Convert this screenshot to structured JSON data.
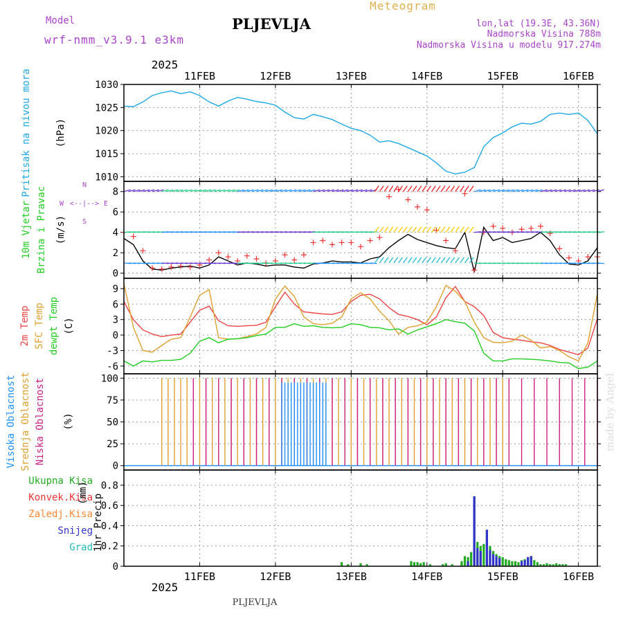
{
  "header": {
    "model_label": "Model",
    "model_name": "wrf-nmm_v3.9.1 e3km",
    "station_title": "PLJEVLJA",
    "meteogram_label": "Meteogram",
    "location": "lon,lat (19.3E, 43.36N)",
    "altitude": "Nadmorska Visina 788m",
    "model_altitude": "Nadmorska Visina u modelu 917.274m",
    "footer_station": "PLJEVLJA",
    "watermark": "made by Angel",
    "year_top": "2025",
    "year_bottom": "2025"
  },
  "colors": {
    "pressure": "#1ea8e8",
    "temp2m": "#ee4444",
    "sfc": "#e0a030",
    "dew": "#22cc22",
    "high_cloud": "#1e90ff",
    "mid_cloud": "#e0a030",
    "low_cloud": "#cc2288",
    "total_precip": "#22aa22",
    "conv_precip": "#ee3333",
    "frozen": "#ff8833",
    "snow": "#3333cc",
    "graupel": "#22bbbb",
    "wind_gust": "#ee3333",
    "wind_speed": "#000000"
  },
  "chart_data": {
    "type": "meteogram",
    "time_axis": {
      "date_labels": [
        "11FEB",
        "12FEB",
        "13FEB",
        "14FEB",
        "15FEB",
        "16FEB"
      ],
      "start_hour": -12,
      "end_hour": 138,
      "label_hours": [
        12,
        36,
        60,
        84,
        108,
        132
      ]
    },
    "panels": [
      {
        "id": "pressure",
        "ylabel": "Pritisak na nivou mora",
        "unit": "(hPa)",
        "ylim": [
          1009,
          1030
        ],
        "ticks": [
          1010,
          1015,
          1020,
          1025,
          1030
        ],
        "series": [
          {
            "name": "Pritisak na nivou mora",
            "x": [
              -12,
              -9,
              -6,
              -3,
              0,
              3,
              6,
              9,
              12,
              15,
              18,
              21,
              24,
              27,
              30,
              33,
              36,
              39,
              42,
              45,
              48,
              51,
              54,
              57,
              60,
              63,
              66,
              69,
              72,
              75,
              78,
              81,
              84,
              87,
              90,
              93,
              96,
              99,
              102,
              105,
              108,
              111,
              114,
              117,
              120,
              123,
              126,
              129,
              132,
              135,
              138
            ],
            "y": [
              1025.3,
              1025.2,
              1026.2,
              1027.6,
              1028.2,
              1028.6,
              1028.0,
              1028.4,
              1027.6,
              1026.2,
              1025.3,
              1026.4,
              1027.2,
              1026.8,
              1026.3,
              1026.0,
              1025.5,
              1024.0,
              1022.8,
              1022.5,
              1023.5,
              1023.0,
              1022.4,
              1021.4,
              1020.5,
              1020.0,
              1019.0,
              1017.5,
              1017.8,
              1017.2,
              1016.3,
              1015.4,
              1014.5,
              1013.0,
              1011.2,
              1010.6,
              1011.0,
              1012.0,
              1016.5,
              1018.5,
              1019.5,
              1020.8,
              1021.6,
              1021.4,
              1022.0,
              1023.5,
              1023.8,
              1023.5,
              1023.8,
              1022.2,
              1019.3
            ]
          }
        ]
      },
      {
        "id": "wind",
        "ylabel": "10m Vjetar",
        "ylabel2": "Brzina i Pravac",
        "unit": "(m/s)",
        "compass": "N",
        "compass_w": "W",
        "compass_e": "E",
        "compass_s": "S",
        "ylim": [
          -0.5,
          9
        ],
        "ticks": [
          0,
          2,
          4,
          6,
          8
        ],
        "series": [
          {
            "name": "Brzina",
            "x": [
              -12,
              -9,
              -6,
              -3,
              0,
              3,
              6,
              9,
              12,
              15,
              18,
              21,
              24,
              27,
              30,
              33,
              36,
              39,
              42,
              45,
              48,
              51,
              54,
              57,
              60,
              63,
              66,
              69,
              72,
              75,
              78,
              81,
              84,
              87,
              90,
              93,
              96,
              99,
              102,
              105,
              108,
              111,
              114,
              117,
              120,
              123,
              126,
              129,
              132,
              135,
              138
            ],
            "y": [
              3.4,
              2.8,
              1.2,
              0.4,
              0.3,
              0.5,
              0.6,
              0.7,
              0.5,
              0.8,
              1.6,
              1.2,
              0.8,
              1.0,
              0.9,
              0.7,
              0.8,
              0.8,
              0.6,
              0.5,
              0.9,
              1.0,
              1.2,
              1.1,
              1.1,
              1.0,
              1.4,
              1.6,
              2.5,
              3.2,
              3.8,
              3.3,
              3.0,
              2.7,
              2.5,
              2.4,
              4.0,
              0.1,
              4.5,
              3.2,
              3.5,
              3.0,
              3.2,
              3.4,
              4.0,
              3.2,
              1.8,
              0.9,
              0.8,
              1.2,
              2.5
            ]
          },
          {
            "name": "Udari",
            "x": [
              -12,
              -9,
              -6,
              -3,
              0,
              3,
              6,
              9,
              12,
              15,
              18,
              21,
              24,
              27,
              30,
              33,
              36,
              39,
              42,
              45,
              48,
              51,
              54,
              57,
              60,
              63,
              66,
              69,
              72,
              75,
              78,
              81,
              84,
              87,
              90,
              93,
              96,
              99,
              102,
              105,
              108,
              111,
              114,
              117,
              120,
              123,
              126,
              129,
              132,
              135,
              138
            ],
            "y": [
              4.0,
              3.6,
              2.2,
              0.5,
              0.4,
              0.6,
              0.7,
              0.6,
              0.8,
              1.3,
              2.0,
              1.6,
              1.2,
              1.7,
              1.4,
              1.0,
              1.2,
              1.8,
              1.3,
              1.8,
              3.0,
              3.2,
              2.8,
              3.0,
              3.0,
              2.6,
              3.2,
              3.5,
              7.5,
              8.2,
              7.2,
              6.5,
              6.2,
              4.2,
              3.2,
              2.2,
              7.8,
              0.3,
              4.0,
              4.6,
              4.4,
              4.0,
              4.3,
              4.4,
              4.6,
              3.9,
              2.4,
              1.5,
              1.2,
              1.6,
              1.6
            ]
          }
        ],
        "barb_rows": [
          8,
          4,
          1
        ]
      },
      {
        "id": "temperature",
        "ylabel": "2m Temp",
        "ylabel2": "SFC Temp",
        "ylabel3": "dewpt Temp",
        "unit": "(C)",
        "ylim": [
          -7.5,
          11
        ],
        "ticks": [
          -6,
          -3,
          0,
          3,
          6,
          9
        ],
        "series": [
          {
            "name": "2m Temp",
            "x": [
              -12,
              -9,
              -6,
              -3,
              0,
              3,
              6,
              9,
              12,
              15,
              18,
              21,
              24,
              27,
              30,
              33,
              36,
              39,
              42,
              45,
              48,
              51,
              54,
              57,
              60,
              63,
              66,
              69,
              72,
              75,
              78,
              81,
              84,
              87,
              90,
              93,
              96,
              99,
              102,
              105,
              108,
              111,
              114,
              117,
              120,
              123,
              126,
              129,
              132,
              135,
              138
            ],
            "y": [
              6.5,
              3.0,
              1.0,
              0.2,
              -0.3,
              0.0,
              0.2,
              2.5,
              4.8,
              5.6,
              2.8,
              1.8,
              1.7,
              1.8,
              1.9,
              2.5,
              5.5,
              8.3,
              6.0,
              4.5,
              4.3,
              4.1,
              4.0,
              4.5,
              6.5,
              7.7,
              7.9,
              7.0,
              5.3,
              4.0,
              3.6,
              3.0,
              2.0,
              3.5,
              7.2,
              9.4,
              6.5,
              5.5,
              3.8,
              0.5,
              -0.5,
              -0.8,
              -1.0,
              -1.3,
              -1.5,
              -2.0,
              -2.8,
              -3.3,
              -3.8,
              -2.5,
              3.2
            ]
          },
          {
            "name": "SFC Temp",
            "x": [
              -12,
              -9,
              -6,
              -3,
              0,
              3,
              6,
              9,
              12,
              15,
              18,
              21,
              24,
              27,
              30,
              33,
              36,
              39,
              42,
              45,
              48,
              51,
              54,
              57,
              60,
              63,
              66,
              69,
              72,
              75,
              78,
              81,
              84,
              87,
              90,
              93,
              96,
              99,
              102,
              105,
              108,
              111,
              114,
              117,
              120,
              123,
              126,
              129,
              132,
              135,
              138
            ],
            "y": [
              10.0,
              1.5,
              -3.0,
              -3.3,
              -2.0,
              -0.8,
              -0.5,
              3.5,
              7.7,
              8.8,
              -0.5,
              -0.8,
              -0.7,
              -0.3,
              0.2,
              1.5,
              7.0,
              9.5,
              7.5,
              3.5,
              2.2,
              2.0,
              2.3,
              3.5,
              7.0,
              8.2,
              7.0,
              4.6,
              2.8,
              0.2,
              1.5,
              1.8,
              2.5,
              5.5,
              9.6,
              8.5,
              6.5,
              2.5,
              -0.5,
              -1.4,
              -1.5,
              -1.2,
              0.0,
              -1.0,
              -2.5,
              -2.2,
              -3.0,
              -4.2,
              -5.0,
              -1.5,
              8.0
            ]
          },
          {
            "name": "dewpt Temp",
            "x": [
              -12,
              -9,
              -6,
              -3,
              0,
              3,
              6,
              9,
              12,
              15,
              18,
              21,
              24,
              27,
              30,
              33,
              36,
              39,
              42,
              45,
              48,
              51,
              54,
              57,
              60,
              63,
              66,
              69,
              72,
              75,
              78,
              81,
              84,
              87,
              90,
              93,
              96,
              99,
              102,
              105,
              108,
              111,
              114,
              117,
              120,
              123,
              126,
              129,
              132,
              135,
              138
            ],
            "y": [
              -5.0,
              -6.0,
              -5.0,
              -5.2,
              -4.9,
              -4.9,
              -4.7,
              -3.5,
              -1.2,
              -0.5,
              -1.5,
              -0.8,
              -0.7,
              -0.5,
              -0.1,
              0.2,
              1.5,
              1.5,
              2.2,
              1.7,
              1.8,
              1.5,
              1.4,
              1.5,
              2.2,
              2.0,
              1.5,
              1.4,
              1.0,
              1.2,
              0.2,
              1.0,
              1.6,
              2.2,
              3.0,
              2.6,
              2.3,
              0.8,
              -3.5,
              -5.0,
              -5.0,
              -4.6,
              -4.6,
              -4.7,
              -4.8,
              -5.0,
              -5.3,
              -5.4,
              -6.5,
              -6.2,
              -5.0
            ]
          }
        ]
      },
      {
        "id": "clouds",
        "ylabel": "Visoka Oblacnost",
        "ylabel2": "Srednja Oblacnost",
        "ylabel3": "Niska Oblacnost",
        "unit": "(%)",
        "ylim": [
          -5,
          105
        ],
        "ticks": [
          0,
          25,
          50,
          75,
          100
        ],
        "spans": [
          {
            "name": "Srednja Oblacnost",
            "from": 0,
            "to": 110,
            "dt": 2,
            "value": 100
          },
          {
            "name": "Niska Oblacnost",
            "from": 10,
            "to": 138,
            "dt": 4,
            "value": 100
          },
          {
            "name": "Visoka Oblacnost",
            "from": 38,
            "to": 52,
            "dt": 1,
            "value": 95
          }
        ]
      },
      {
        "id": "precip",
        "ylabel": "1hr Precip",
        "unit": "(mm)",
        "legend": [
          "Ukupna Kisa",
          "Konvek.Kisa",
          "Zaledj.Kisa",
          "Snijeg",
          "Grad"
        ],
        "ylim": [
          0,
          0.95
        ],
        "ticks": [
          0,
          0.2,
          0.4,
          0.6,
          0.8
        ],
        "series": [
          {
            "name": "Ukupna Kisa",
            "x": [
              57,
              59,
              63,
              65,
              79,
              80,
              81,
              82,
              83,
              85,
              89,
              90,
              92,
              95,
              96,
              97,
              98,
              99,
              100,
              101,
              102,
              103,
              104,
              105,
              106,
              107,
              108,
              109,
              110,
              111,
              112,
              113,
              114,
              115,
              116,
              117,
              118,
              119,
              120,
              121,
              122,
              123,
              124,
              125,
              126,
              127,
              128
            ],
            "y": [
              0.04,
              0.02,
              0.03,
              0.02,
              0.05,
              0.04,
              0.04,
              0.03,
              0.04,
              0.02,
              0.02,
              0.03,
              0.02,
              0.05,
              0.1,
              0.09,
              0.14,
              0.69,
              0.24,
              0.2,
              0.22,
              0.36,
              0.2,
              0.15,
              0.12,
              0.1,
              0.09,
              0.07,
              0.06,
              0.05,
              0.05,
              0.04,
              0.06,
              0.07,
              0.09,
              0.1,
              0.06,
              0.04,
              0.02,
              0.02,
              0.03,
              0.02,
              0.02,
              0.03,
              0.02,
              0.02,
              0.02
            ]
          },
          {
            "name": "Snijeg",
            "x": [
              97,
              99,
              100,
              101,
              103,
              104,
              105,
              106,
              107,
              114,
              115,
              116,
              117
            ],
            "y": [
              0.05,
              0.69,
              0.18,
              0.15,
              0.36,
              0.16,
              0.12,
              0.1,
              0.08,
              0.05,
              0.06,
              0.09,
              0.1
            ]
          }
        ]
      }
    ]
  }
}
